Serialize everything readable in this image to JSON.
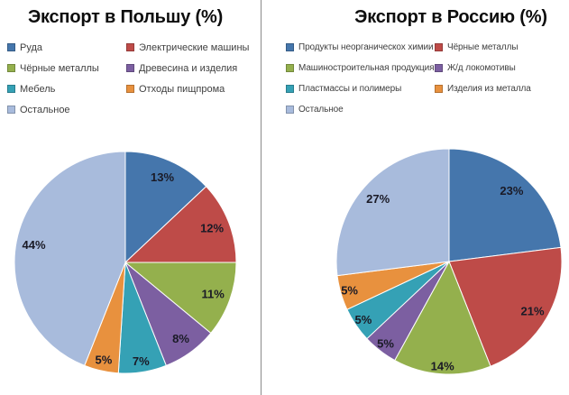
{
  "page": {
    "background": "#ffffff",
    "divider_color": "#8a8a8a",
    "title_color": "#0d0d0d",
    "legend_text_color": "#404040",
    "data_label_color": "#1a1a26"
  },
  "chart_data": [
    {
      "type": "pie",
      "title": "Экспорт в Польшу (%)",
      "categories": [
        "Руда",
        "Электрические машины",
        "Чёрные металлы",
        "Древесина и изделия",
        "Мебель",
        "Отходы пищпрома",
        "Остальное"
      ],
      "values": [
        13,
        12,
        11,
        8,
        7,
        5,
        44
      ],
      "labels": [
        "13%",
        "12%",
        "11%",
        "8%",
        "7%",
        "5%",
        "44%"
      ],
      "colors": [
        "#4576AC",
        "#BE4B48",
        "#94B04D",
        "#7C5FA1",
        "#35A1B5",
        "#E8913E",
        "#A8BBDC"
      ],
      "value_unit": "%",
      "start_angle_deg": 0,
      "direction": "clockwise",
      "legend_position": "top",
      "legend_columns": 2,
      "label_position": "inside-end"
    },
    {
      "type": "pie",
      "title": "Экспорт в Россию (%)",
      "categories": [
        "Продукты неорганическох химии",
        "Чёрные металлы",
        "Машиностроительная продукция",
        "Ж/д локомотивы",
        "Пластмассы и полимеры",
        "Изделия из металла",
        "Остальное"
      ],
      "values": [
        23,
        21,
        14,
        5,
        5,
        5,
        27
      ],
      "labels": [
        "23%",
        "21%",
        "14%",
        "5%",
        "5%",
        "5%",
        "27%"
      ],
      "colors": [
        "#4576AC",
        "#BE4B48",
        "#94B04D",
        "#7C5FA1",
        "#35A1B5",
        "#E8913E",
        "#A8BBDC"
      ],
      "value_unit": "%",
      "start_angle_deg": 0,
      "direction": "clockwise",
      "legend_position": "top",
      "legend_columns": 2,
      "label_position": "inside-end"
    }
  ]
}
